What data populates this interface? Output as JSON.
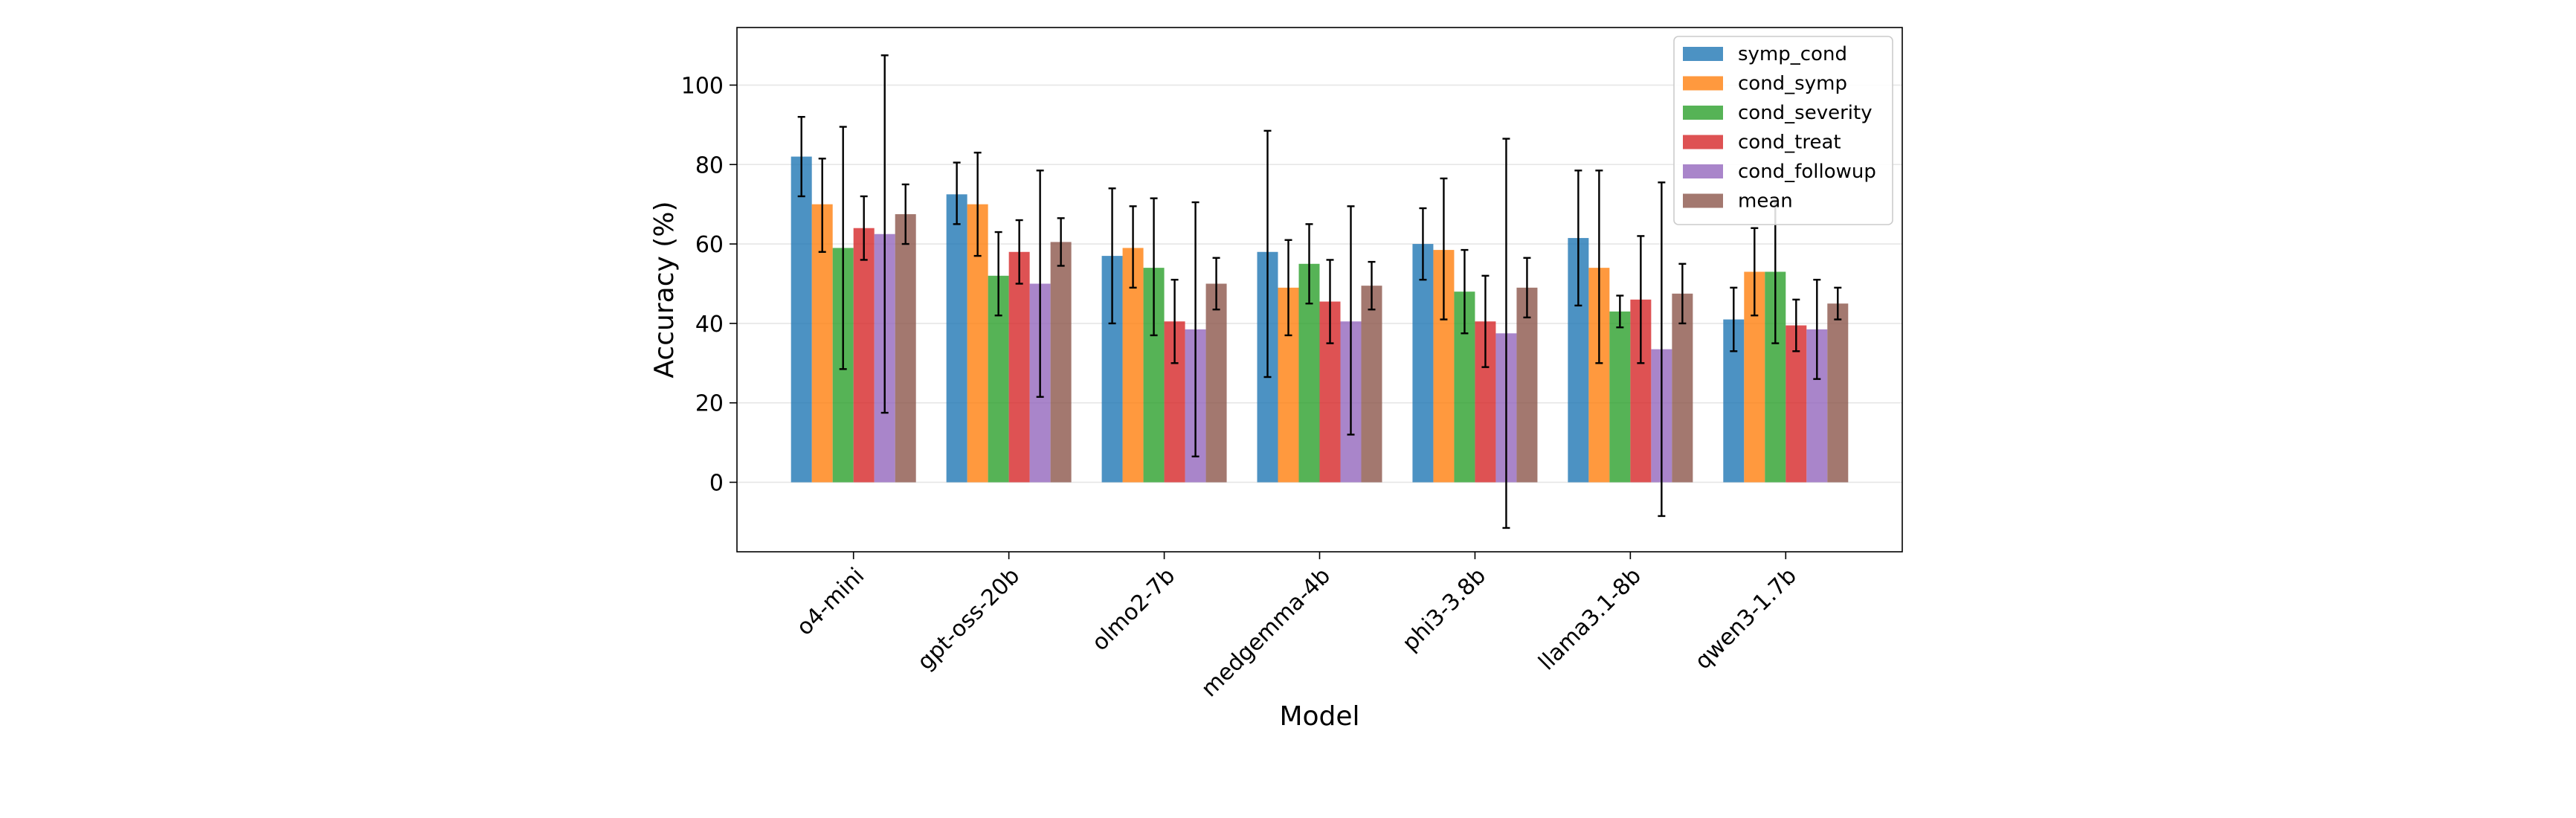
{
  "chart_data": {
    "type": "bar",
    "title": "",
    "xlabel": "Model",
    "ylabel": "Accuracy (%)",
    "ylim": [
      -17.5,
      114.5
    ],
    "yticks": [
      0,
      20,
      40,
      60,
      80,
      100
    ],
    "grid": "horizontal",
    "legend_position": "top-right",
    "categories": [
      "o4-mini",
      "gpt-oss-20b",
      "olmo2-7b",
      "medgemma-4b",
      "phi3-3.8b",
      "llama3.1-8b",
      "qwen3-1.7b"
    ],
    "series": [
      {
        "name": "symp_cond",
        "color": "#1f77b4",
        "values": [
          82,
          72.5,
          57,
          58,
          60,
          61.5,
          41
        ],
        "error": [
          [
            72,
            92
          ],
          [
            65,
            80.5
          ],
          [
            40,
            74
          ],
          [
            26.5,
            88.5
          ],
          [
            51,
            69
          ],
          [
            44.5,
            78.5
          ],
          [
            33,
            49
          ]
        ]
      },
      {
        "name": "cond_symp",
        "color": "#ff7f0e",
        "values": [
          70,
          70,
          59,
          49,
          58.5,
          54,
          53
        ],
        "error": [
          [
            58,
            81.5
          ],
          [
            57,
            83
          ],
          [
            49,
            69.5
          ],
          [
            37,
            61
          ],
          [
            41,
            76.5
          ],
          [
            30,
            78.5
          ],
          [
            42,
            64
          ]
        ]
      },
      {
        "name": "cond_severity",
        "color": "#2ca02c",
        "values": [
          59,
          52,
          54,
          55,
          48,
          43,
          53
        ],
        "error": [
          [
            28.5,
            89.5
          ],
          [
            42,
            63
          ],
          [
            37,
            71.5
          ],
          [
            45,
            65
          ],
          [
            37.5,
            58.5
          ],
          [
            39,
            47
          ],
          [
            35,
            71
          ]
        ]
      },
      {
        "name": "cond_treat",
        "color": "#d62728",
        "values": [
          64,
          58,
          40.5,
          45.5,
          40.5,
          46,
          39.5
        ],
        "error": [
          [
            56,
            72
          ],
          [
            50,
            66
          ],
          [
            30,
            51
          ],
          [
            35,
            56
          ],
          [
            29,
            52
          ],
          [
            30,
            62
          ],
          [
            33,
            46
          ]
        ]
      },
      {
        "name": "cond_followup",
        "color": "#9467bd",
        "values": [
          62.5,
          50,
          38.5,
          40.5,
          37.5,
          33.5,
          38.5
        ],
        "error": [
          [
            17.5,
            107.5
          ],
          [
            21.5,
            78.5
          ],
          [
            6.5,
            70.5
          ],
          [
            12,
            69.5
          ],
          [
            -11.5,
            86.5
          ],
          [
            -8.5,
            75.5
          ],
          [
            26,
            51
          ]
        ]
      },
      {
        "name": "mean",
        "color": "#8c564b",
        "values": [
          67.5,
          60.5,
          50,
          49.5,
          49,
          47.5,
          45
        ],
        "error": [
          [
            60,
            75
          ],
          [
            54.5,
            66.5
          ],
          [
            43.5,
            56.5
          ],
          [
            43.5,
            55.5
          ],
          [
            41.5,
            56.5
          ],
          [
            40,
            55
          ],
          [
            41,
            49
          ]
        ]
      }
    ]
  }
}
